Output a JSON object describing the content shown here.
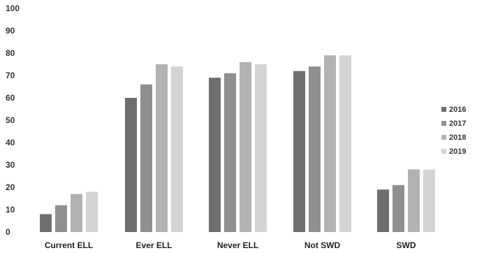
{
  "chart_data": {
    "type": "bar",
    "title": "",
    "xlabel": "",
    "ylabel": "",
    "ylim": [
      0,
      100
    ],
    "yticks": [
      0,
      10,
      20,
      30,
      40,
      50,
      60,
      70,
      80,
      90,
      100
    ],
    "categories": [
      "Current ELL",
      "Ever ELL",
      "Never ELL",
      "Not SWD",
      "SWD"
    ],
    "series": [
      {
        "name": "2016",
        "values": [
          8,
          60,
          69,
          72,
          19
        ],
        "color": "#6e6e6e"
      },
      {
        "name": "2017",
        "values": [
          12,
          66,
          71,
          74,
          21
        ],
        "color": "#8f8f8f"
      },
      {
        "name": "2018",
        "values": [
          17,
          75,
          76,
          79,
          28
        ],
        "color": "#b2b2b2"
      },
      {
        "name": "2019",
        "values": [
          18,
          74,
          75,
          79,
          28
        ],
        "color": "#d4d4d4"
      }
    ],
    "grid": false,
    "legend_position": "right"
  }
}
